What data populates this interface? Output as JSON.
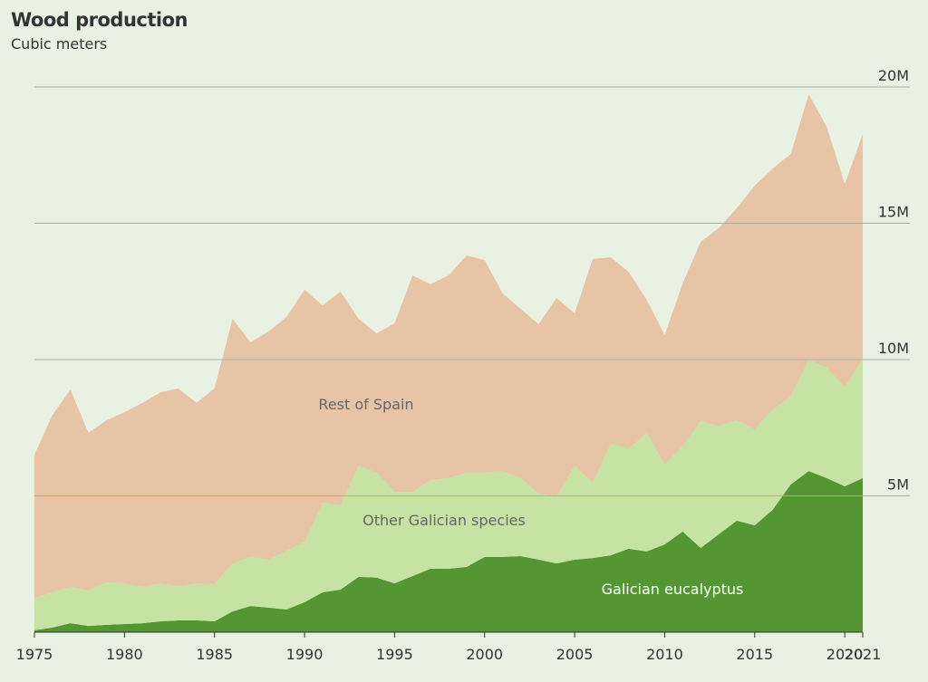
{
  "chart_data": {
    "type": "stacked_area",
    "title": "Wood production",
    "subtitle": "Cubic meters",
    "x": [
      1975,
      1976,
      1977,
      1978,
      1979,
      1980,
      1981,
      1982,
      1983,
      1984,
      1985,
      1986,
      1987,
      1988,
      1989,
      1990,
      1991,
      1992,
      1993,
      1994,
      1995,
      1996,
      1997,
      1998,
      1999,
      2000,
      2001,
      2002,
      2003,
      2004,
      2005,
      2006,
      2007,
      2008,
      2009,
      2010,
      2011,
      2012,
      2013,
      2014,
      2015,
      2016,
      2017,
      2018,
      2019,
      2020,
      2021
    ],
    "series": [
      {
        "name": "Galician eucalyptus",
        "color": "#539632",
        "label_color": "#ffffff",
        "values": [
          0.07,
          0.17,
          0.33,
          0.23,
          0.27,
          0.3,
          0.33,
          0.4,
          0.43,
          0.43,
          0.4,
          0.76,
          0.96,
          0.9,
          0.83,
          1.1,
          1.46,
          1.56,
          2.03,
          2.0,
          1.79,
          2.06,
          2.33,
          2.33,
          2.39,
          2.76,
          2.76,
          2.79,
          2.66,
          2.52,
          2.66,
          2.72,
          2.82,
          3.06,
          2.96,
          3.22,
          3.69,
          3.09,
          3.59,
          4.09,
          3.92,
          4.49,
          5.42,
          5.91,
          5.65,
          5.35,
          5.65
        ]
      },
      {
        "name": "Other Galician species",
        "color": "#c6e3a3",
        "label_color": "#666666",
        "values": [
          1.19,
          1.28,
          1.33,
          1.3,
          1.56,
          1.49,
          1.33,
          1.39,
          1.26,
          1.36,
          1.36,
          1.76,
          1.8,
          1.76,
          2.16,
          2.22,
          3.29,
          3.09,
          4.08,
          3.85,
          3.36,
          3.09,
          3.25,
          3.32,
          3.46,
          3.09,
          3.15,
          2.86,
          2.42,
          2.46,
          3.45,
          2.76,
          4.09,
          3.68,
          4.34,
          2.93,
          3.15,
          4.65,
          3.98,
          3.68,
          3.52,
          3.68,
          3.22,
          4.09,
          4.05,
          3.65,
          4.35
        ]
      },
      {
        "name": "Rest of Spain",
        "color": "#e6c4a5",
        "label_color": "#666666",
        "values": [
          5.25,
          6.52,
          7.24,
          5.78,
          5.94,
          6.28,
          6.75,
          7.01,
          7.25,
          6.62,
          7.18,
          8.98,
          7.87,
          8.37,
          8.57,
          9.24,
          7.24,
          7.84,
          5.39,
          5.11,
          6.18,
          7.94,
          7.18,
          7.44,
          7.97,
          7.8,
          6.52,
          6.21,
          6.22,
          7.28,
          5.58,
          8.21,
          6.84,
          6.48,
          4.89,
          4.75,
          5.95,
          6.58,
          7.25,
          7.78,
          8.94,
          8.84,
          8.9,
          9.73,
          8.84,
          7.44,
          8.27
        ]
      }
    ],
    "xlim": [
      1975,
      2021
    ],
    "xticks": [
      1975,
      1980,
      1985,
      1990,
      1995,
      2000,
      2005,
      2010,
      2015,
      2020,
      2021
    ],
    "ylim": [
      0,
      20
    ],
    "yticks": [
      {
        "value": 5,
        "label": "5M"
      },
      {
        "value": 10,
        "label": "10M"
      },
      {
        "value": 15,
        "label": "15M"
      },
      {
        "value": 20,
        "label": "20M"
      }
    ],
    "grid": true
  }
}
